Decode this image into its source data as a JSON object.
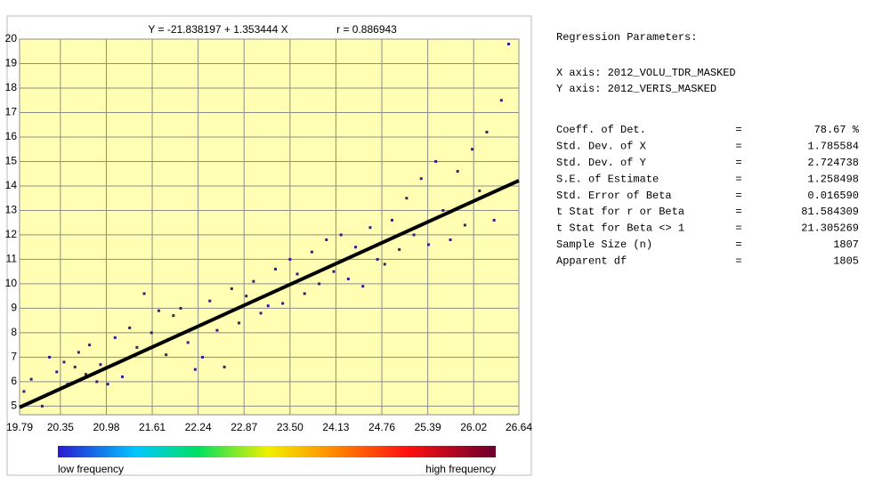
{
  "chart_data": {
    "type": "scatter",
    "title": "Y = -21.838197 + 1.353444 X",
    "subtitle": "r = 0.886943",
    "xlim": [
      19.79,
      26.64
    ],
    "xticks": [
      19.79,
      20.35,
      20.98,
      21.61,
      22.24,
      22.87,
      {
        "value": 23.5,
        "label": "23.50"
      },
      24.13,
      24.76,
      25.39,
      26.02,
      26.64
    ],
    "ylim": [
      4.65,
      20
    ],
    "yticks": [
      5,
      6,
      7,
      8,
      9,
      10,
      11,
      12,
      13,
      14,
      15,
      16,
      17,
      18,
      19,
      20
    ],
    "grid": true,
    "series": [
      {
        "color": "#3b1a80",
        "x": [
          19.85,
          19.95,
          20.1,
          20.2,
          20.3,
          20.4,
          20.45,
          20.55,
          20.6,
          20.7,
          20.75,
          20.85,
          20.9,
          21.0,
          21.1,
          21.2,
          21.3,
          21.4,
          21.5,
          21.6,
          21.7,
          21.8,
          21.9,
          22.0,
          22.1,
          22.2,
          22.3,
          22.4,
          22.5,
          22.6,
          22.7,
          22.8,
          22.9,
          23.0,
          23.1,
          23.2,
          23.3,
          23.4,
          23.5,
          23.6,
          23.7,
          23.8,
          23.9,
          24.0,
          24.1,
          24.2,
          24.3,
          24.4,
          24.5,
          24.6,
          24.7,
          24.8,
          24.9,
          25.0,
          25.1,
          25.2,
          25.3,
          25.4,
          25.5,
          25.6,
          25.7,
          25.8,
          25.9,
          26.0,
          26.1,
          26.2,
          26.3,
          26.4,
          26.5
        ],
        "values": [
          5.6,
          6.1,
          5.0,
          7.0,
          6.4,
          6.8,
          5.9,
          6.6,
          7.2,
          6.3,
          7.5,
          6.0,
          6.7,
          5.9,
          7.8,
          6.2,
          8.2,
          7.4,
          9.6,
          8.0,
          8.9,
          7.1,
          8.7,
          9.0,
          7.6,
          6.5,
          7.0,
          9.3,
          8.1,
          6.6,
          9.8,
          8.4,
          9.5,
          10.1,
          8.8,
          9.1,
          10.6,
          9.2,
          11.0,
          10.4,
          9.6,
          11.3,
          10.0,
          11.8,
          10.5,
          12.0,
          10.2,
          11.5,
          9.9,
          12.3,
          11.0,
          10.8,
          12.6,
          11.4,
          13.5,
          12.0,
          14.3,
          11.6,
          15.0,
          13.0,
          11.8,
          14.6,
          12.4,
          15.5,
          13.8,
          16.2,
          12.6,
          17.5,
          19.8
        ]
      },
      {
        "type": "line",
        "color": "#000000",
        "x": [
          19.79,
          26.64
        ],
        "values": [
          4.95,
          14.22
        ]
      }
    ],
    "legend": [
      "low frequency",
      "high frequency"
    ]
  },
  "panel": {
    "title": "Regression Parameters:",
    "axes": [
      "X axis: 2012_VOLU_TDR_MASKED",
      "Y axis: 2012_VERIS_MASKED"
    ],
    "rows": [
      [
        "Coeff. of Det.",
        "78.67 %"
      ],
      [
        "Std. Dev. of X",
        "1.785584"
      ],
      [
        "Std. Dev. of Y",
        "2.724738"
      ],
      [
        "S.E. of Estimate",
        "1.258498"
      ],
      [
        "Std. Error of Beta",
        "0.016590"
      ],
      [
        "t Stat for r or Beta",
        "81.584309"
      ],
      [
        "t Stat for Beta <> 1",
        "21.305269"
      ],
      [
        "Sample Size (n)",
        "1807"
      ],
      [
        "Apparent df",
        "1805"
      ]
    ]
  }
}
